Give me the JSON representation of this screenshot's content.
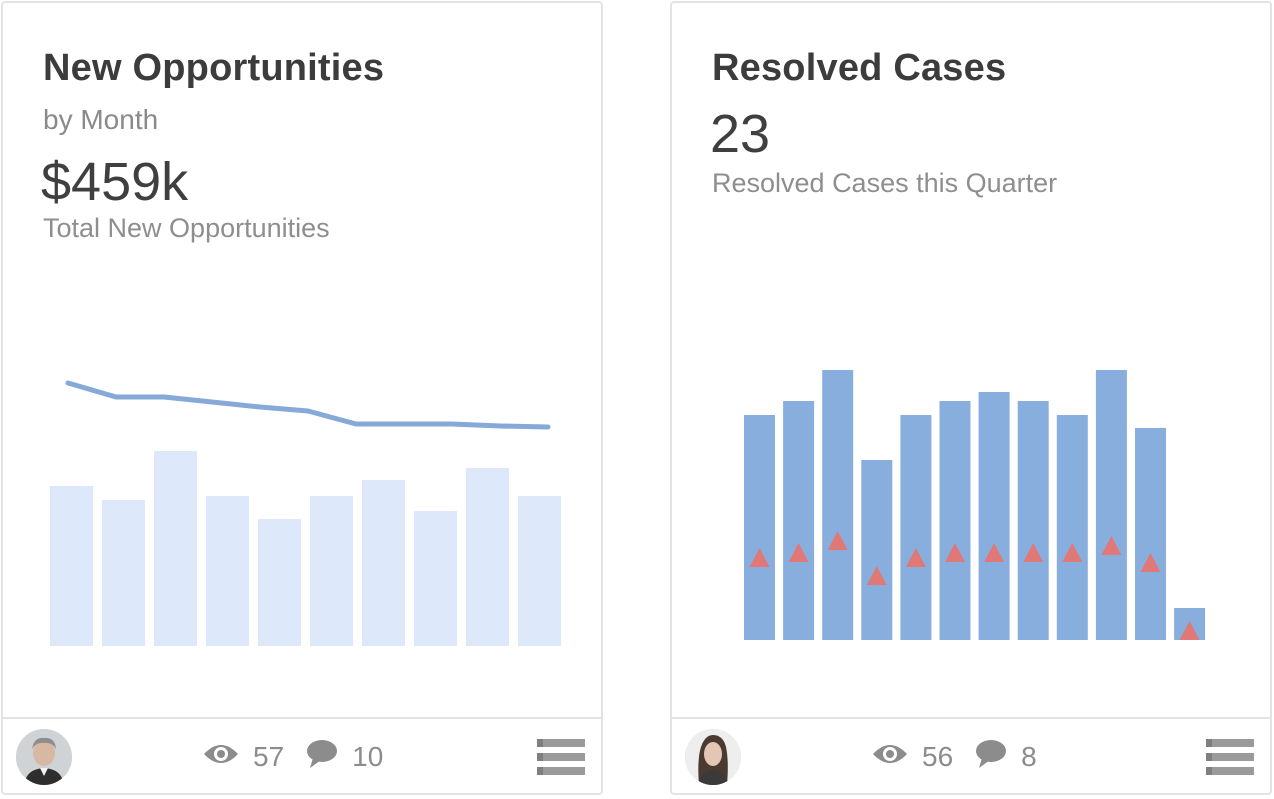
{
  "cards": [
    {
      "title": "New Opportunities",
      "subtitle": "by Month",
      "big_value": "$459k",
      "caption": "Total New Opportunities",
      "views": "57",
      "comments": "10",
      "icons": {
        "views": "eye-icon",
        "comments": "comment-icon",
        "menu": "list-icon"
      },
      "chart_data": {
        "type": "bar",
        "bars": [
          160,
          146,
          195,
          150,
          127,
          150,
          166,
          135,
          178,
          150
        ],
        "line": [
          132,
          118,
          118,
          113,
          108,
          104,
          91,
          91,
          91,
          89,
          88
        ],
        "colors": {
          "bar": "#dde9fb",
          "line": "#86a9d8"
        }
      }
    },
    {
      "title": "Resolved Cases",
      "big_value": "23",
      "caption": "Resolved Cases this Quarter",
      "views": "56",
      "comments": "8",
      "icons": {
        "views": "eye-icon",
        "comments": "comment-icon",
        "menu": "list-icon"
      },
      "chart_data": {
        "type": "bar",
        "bars": [
          225,
          239,
          270,
          180,
          225,
          239,
          248,
          239,
          225,
          270,
          212,
          32
        ],
        "markers": [
          73,
          78,
          90,
          55,
          73,
          78,
          78,
          78,
          78,
          85,
          68,
          0
        ],
        "colors": {
          "bar": "#88aede",
          "marker": "#e07878"
        }
      }
    }
  ]
}
